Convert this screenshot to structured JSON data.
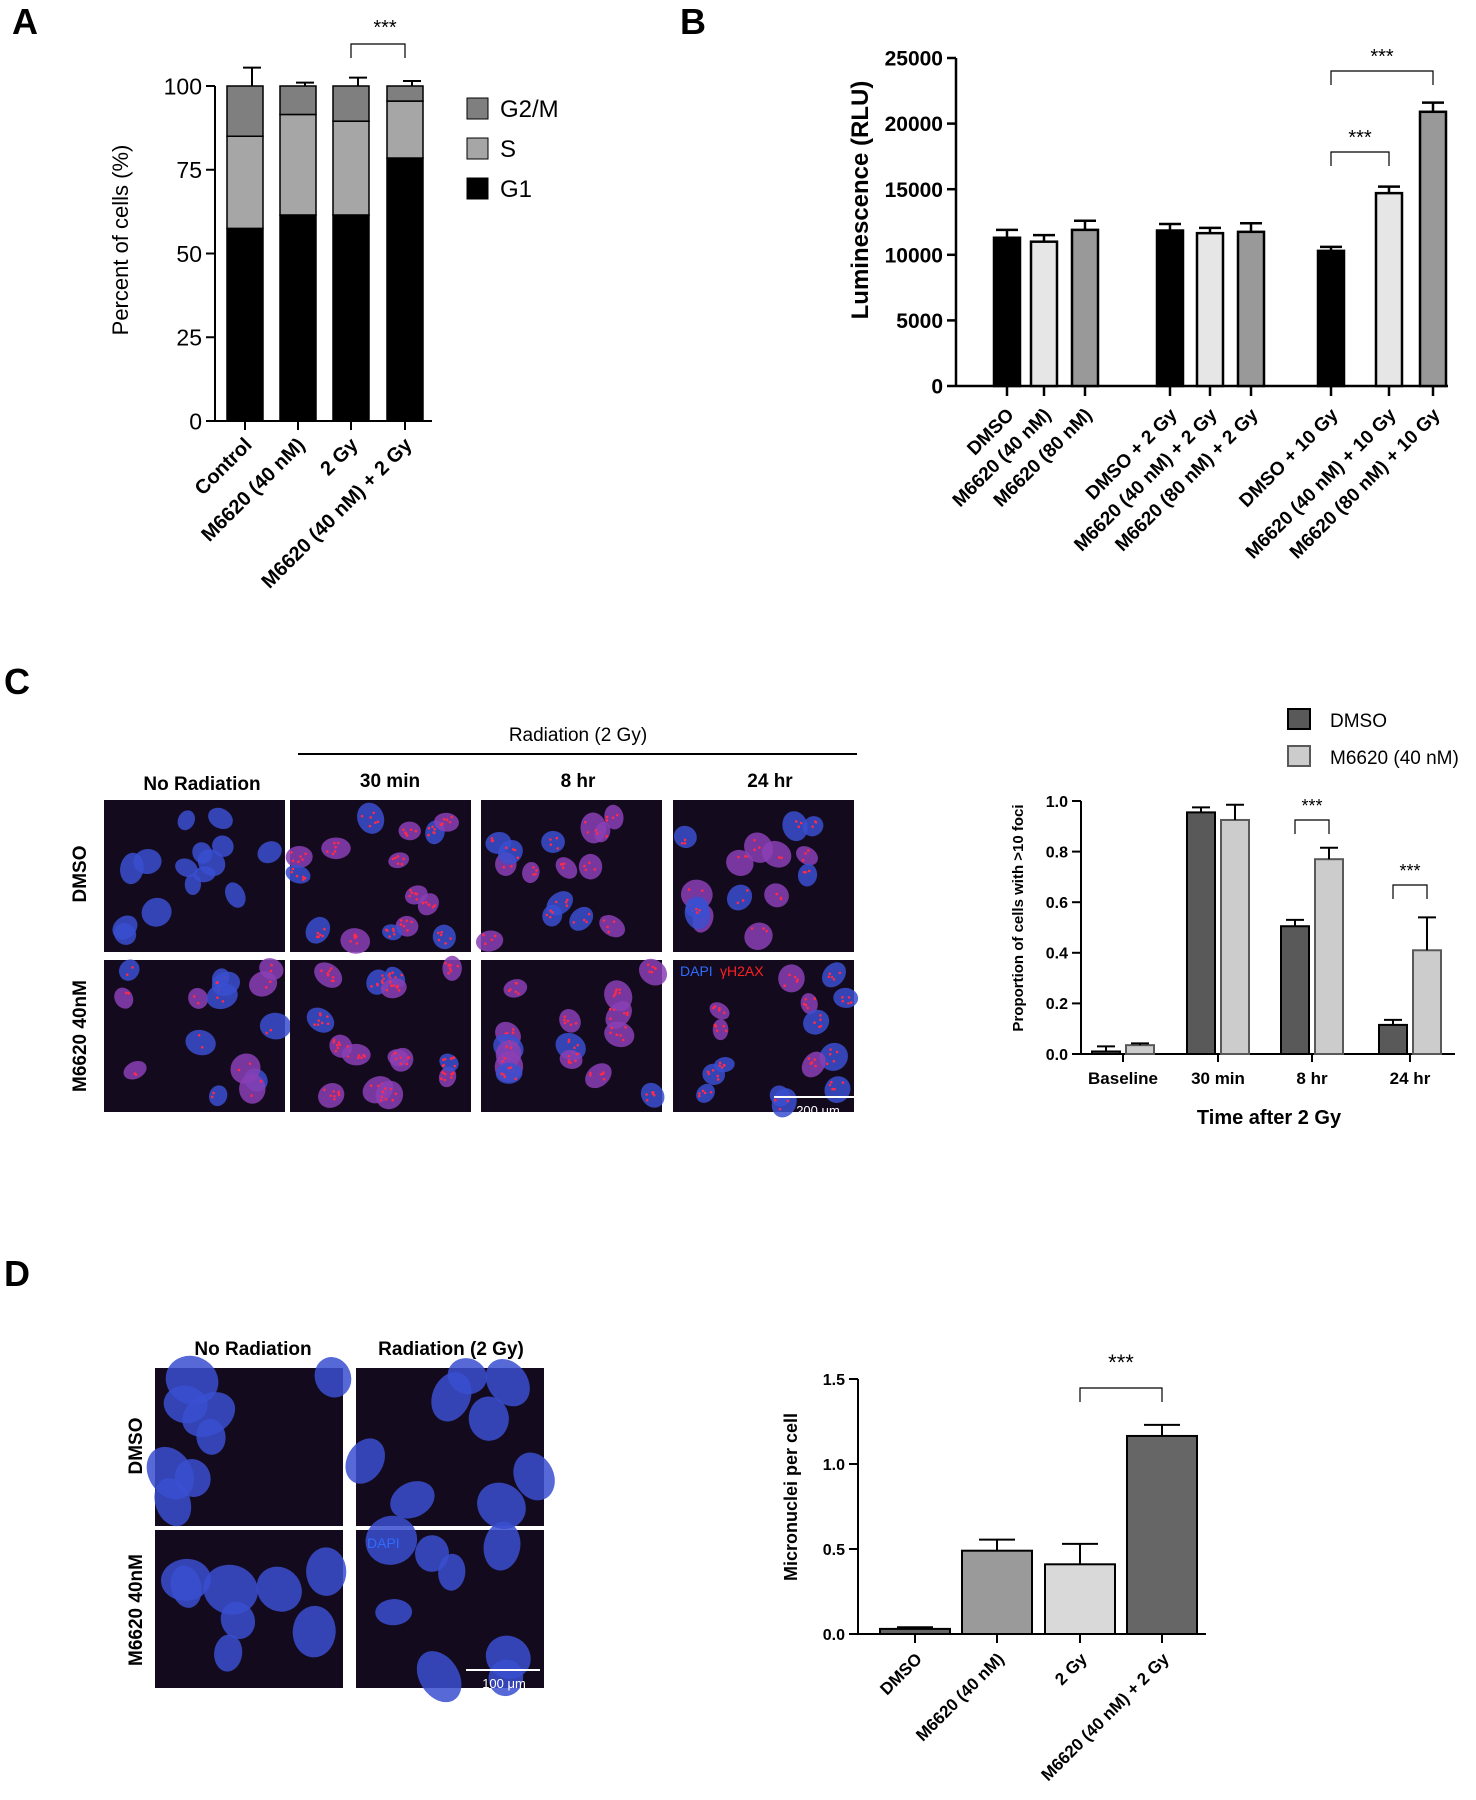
{
  "panels": {
    "a": "A",
    "b": "B",
    "c": "C",
    "d": "D"
  },
  "sig_label": "***",
  "colors": {
    "black": "#000000",
    "g2m_gray": "#7f7f7f",
    "s_gray": "#a6a6a6",
    "light_gray": "#e6e6e6",
    "mid_gray": "#999999",
    "dmso_dark": "#595959",
    "m6620_light": "#cccccc",
    "d_mid": "#9a9a9a",
    "d_light": "#d9d9d9",
    "d_dark": "#666666",
    "micrograph_bg": "#140a1e",
    "nucleus_blue": "#3a4fd0",
    "nucleus_magenta": "#8a3fb5",
    "foci_red": "#ff2a4a",
    "dapi_label": "#2e6cff",
    "h2ax_label": "#ff2020"
  },
  "chart_data": [
    {
      "id": "A",
      "type": "bar",
      "stacked": true,
      "ylabel": "Percent of cells (%)",
      "xlabel": "",
      "ylim": [
        0,
        100
      ],
      "yticks": [
        0,
        25,
        50,
        75,
        100
      ],
      "categories": [
        "Control",
        "M6620 (40 nM)",
        "2 Gy",
        "M6620 (40 nM) + 2 Gy"
      ],
      "series": [
        {
          "name": "G1",
          "values": [
            57.5,
            61.5,
            61.5,
            78.5
          ],
          "errors": [
            2.5,
            1.2,
            2.5,
            2.0
          ],
          "color": "#000000"
        },
        {
          "name": "S",
          "values": [
            27.5,
            30.0,
            28.0,
            17.0
          ],
          "errors": [
            3.5,
            0.8,
            0.7,
            0.8
          ],
          "color": "#a6a6a6"
        },
        {
          "name": "G2/M",
          "values": [
            15.0,
            8.5,
            10.5,
            4.5
          ],
          "errors": [
            5.5,
            1.0,
            2.5,
            1.5
          ],
          "color": "#7f7f7f"
        }
      ],
      "legend_order": [
        "G2/M",
        "S",
        "G1"
      ],
      "legend": "right",
      "grid": false,
      "significance": [
        {
          "from": 2,
          "to": 3,
          "label": "***"
        }
      ]
    },
    {
      "id": "B",
      "type": "bar",
      "ylabel": "Luminescence (RLU)",
      "xlabel": "",
      "ylim": [
        0,
        25000
      ],
      "yticks": [
        0,
        5000,
        10000,
        15000,
        20000,
        25000
      ],
      "categories": [
        "DMSO",
        "M6620 (40 nM)",
        "M6620 (80 nM)",
        "DMSO + 2 Gy",
        "M6620 (40 nM) + 2 Gy",
        "M6620 (80 nM) + 2 Gy",
        "DMSO + 10 Gy",
        "M6620 (40 nM) + 10 Gy",
        "M6620 (80 nM) + 10 Gy"
      ],
      "values": [
        11300,
        11000,
        11900,
        11850,
        11650,
        11750,
        10300,
        14700,
        20900
      ],
      "errors": [
        600,
        500,
        700,
        500,
        400,
        650,
        300,
        500,
        700
      ],
      "groups": [
        [
          0,
          1,
          2
        ],
        [
          3,
          4,
          5
        ],
        [
          6,
          7,
          8
        ]
      ],
      "bar_colors": [
        "#000000",
        "#e6e6e6",
        "#999999",
        "#000000",
        "#e6e6e6",
        "#999999",
        "#000000",
        "#e6e6e6",
        "#999999"
      ],
      "grid": false,
      "significance": [
        {
          "from": 6,
          "to": 7,
          "label": "***"
        },
        {
          "from": 6,
          "to": 8,
          "label": "***"
        }
      ]
    },
    {
      "id": "C",
      "type": "bar",
      "ylabel": "Proportion of cells with >10 foci",
      "xlabel": "Time after 2 Gy",
      "ylim": [
        0,
        1.0
      ],
      "yticks": [
        "0.0",
        "0.2",
        "0.4",
        "0.6",
        "0.8",
        "1.0"
      ],
      "categories": [
        "Baseline",
        "30 min",
        "8 hr",
        "24 hr"
      ],
      "series": [
        {
          "name": "DMSO",
          "values": [
            0.01,
            0.955,
            0.505,
            0.115
          ],
          "errors": [
            0.02,
            0.02,
            0.025,
            0.02
          ],
          "color": "#595959"
        },
        {
          "name": "M6620 (40 nM)",
          "values": [
            0.035,
            0.925,
            0.77,
            0.41
          ],
          "errors": [
            0.007,
            0.06,
            0.045,
            0.13
          ],
          "color": "#cccccc"
        }
      ],
      "legend": "top-right",
      "grid": false,
      "significance": [
        {
          "category": 2,
          "label": "***"
        },
        {
          "category": 3,
          "label": "***"
        }
      ]
    },
    {
      "id": "D",
      "type": "bar",
      "ylabel": "Micronuclei per cell",
      "xlabel": "",
      "ylim": [
        0,
        1.5
      ],
      "yticks": [
        "0.0",
        "0.5",
        "1.0",
        "1.5"
      ],
      "categories": [
        "DMSO",
        "M6620 (40 nM)",
        "2 Gy",
        "M6620 (40 nM) + 2 Gy"
      ],
      "values": [
        0.03,
        0.49,
        0.41,
        1.165
      ],
      "errors": [
        0.01,
        0.065,
        0.12,
        0.065
      ],
      "bar_colors": [
        "#666666",
        "#9a9a9a",
        "#d9d9d9",
        "#666666"
      ],
      "grid": false,
      "significance": [
        {
          "from": 2,
          "to": 3,
          "label": "***"
        }
      ]
    }
  ],
  "micrographs": {
    "c": {
      "header": "Radiation (2 Gy)",
      "columns": [
        "No Radiation",
        "30 min",
        "8 hr",
        "24 hr"
      ],
      "rows": [
        "DMSO",
        "M6620 40nM"
      ],
      "stain_dapi": "DAPI",
      "stain_h2ax": "γH2AX",
      "scale_bar": "200 μm"
    },
    "d": {
      "columns": [
        "No Radiation",
        "Radiation (2 Gy)"
      ],
      "rows": [
        "DMSO",
        "M6620 40nM"
      ],
      "stain_dapi": "DAPI",
      "scale_bar": "100 μm"
    }
  }
}
